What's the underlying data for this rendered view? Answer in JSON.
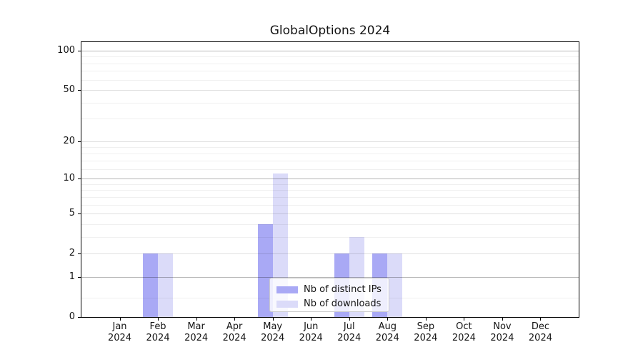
{
  "chart_data": {
    "type": "bar",
    "title": "GlobalOptions 2024",
    "categories": [
      "Jan",
      "Feb",
      "Mar",
      "Apr",
      "May",
      "Jun",
      "Jul",
      "Aug",
      "Sep",
      "Oct",
      "Nov",
      "Dec"
    ],
    "category_year": "2024",
    "series": [
      {
        "name": "Nb of distinct IPs",
        "color": "#a9a9f5",
        "values": [
          0,
          2,
          0,
          0,
          4,
          0,
          2,
          2,
          0,
          0,
          0,
          0
        ]
      },
      {
        "name": "Nb of downloads",
        "color": "#dbdbf9",
        "values": [
          0,
          2,
          0,
          0,
          11,
          0,
          3,
          2,
          0,
          0,
          0,
          0
        ]
      }
    ],
    "xlabel": "",
    "ylabel": "",
    "y_axis": {
      "scale": "log1p",
      "ylim": [
        0,
        116
      ],
      "ticks": [
        0,
        1,
        2,
        5,
        10,
        20,
        50,
        100
      ],
      "emphasized_ticks": [
        1,
        10,
        100
      ],
      "minor_ticks": [
        0.4,
        3,
        4,
        6,
        7,
        8,
        9,
        12,
        14,
        16,
        18,
        30,
        40,
        60,
        70,
        80,
        90
      ]
    },
    "legend": {
      "position": "lower center",
      "entries": [
        "Nb of distinct IPs",
        "Nb of downloads"
      ]
    },
    "grid": true,
    "colors": {
      "background": "#ffffff",
      "spine": "#000000",
      "bar_distinct_ips": "#a9a9f5",
      "bar_downloads": "#dbdbf9",
      "grid_major": "rgba(0,0,0,0.28)",
      "grid_mid": "rgba(0,0,0,0.12)",
      "grid_minor": "rgba(0,0,0,0.06)"
    }
  }
}
